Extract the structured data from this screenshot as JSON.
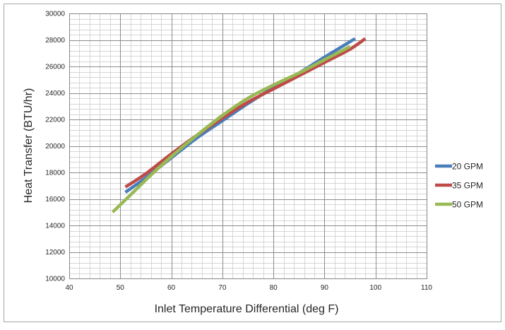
{
  "chart_data": {
    "type": "line",
    "title": "",
    "xlabel": "Inlet Temperature Differential (deg F)",
    "ylabel": "Heat Transfer (BTU/hr)",
    "xlim": [
      40,
      110
    ],
    "ylim": [
      10000,
      30000
    ],
    "x_ticks": [
      40,
      50,
      60,
      70,
      80,
      90,
      100,
      110
    ],
    "y_ticks": [
      10000,
      12000,
      14000,
      16000,
      18000,
      20000,
      22000,
      24000,
      26000,
      28000,
      30000
    ],
    "x_tick_labels": [
      "40",
      "50",
      "60",
      "70",
      "80",
      "90",
      "100",
      "110"
    ],
    "y_tick_labels": [
      "10000",
      "12000",
      "14000",
      "16000",
      "18000",
      "20000",
      "22000",
      "24000",
      "26000",
      "28000",
      "30000"
    ],
    "major_grid": true,
    "minor_grid": true,
    "legend_position": "right",
    "series": [
      {
        "name": "20 GPM",
        "color": "#4a7ebb",
        "points": [
          [
            51,
            16500
          ],
          [
            55,
            17600
          ],
          [
            60,
            19100
          ],
          [
            65,
            20600
          ],
          [
            70,
            21900
          ],
          [
            75,
            23200
          ],
          [
            80,
            24400
          ],
          [
            85,
            25500
          ],
          [
            90,
            26700
          ],
          [
            96,
            28100
          ]
        ]
      },
      {
        "name": "35 GPM",
        "color": "#be4b48",
        "points": [
          [
            51,
            16900
          ],
          [
            55,
            17900
          ],
          [
            60,
            19400
          ],
          [
            65,
            20800
          ],
          [
            70,
            22100
          ],
          [
            75,
            23300
          ],
          [
            80,
            24300
          ],
          [
            85,
            25300
          ],
          [
            90,
            26300
          ],
          [
            95,
            27300
          ],
          [
            98,
            28100
          ]
        ]
      },
      {
        "name": "50 GPM",
        "color": "#98b954",
        "points": [
          [
            48.5,
            15000
          ],
          [
            52,
            16300
          ],
          [
            56,
            17800
          ],
          [
            60,
            19200
          ],
          [
            65,
            20800
          ],
          [
            70,
            22300
          ],
          [
            75,
            23600
          ],
          [
            80,
            24600
          ],
          [
            85,
            25500
          ],
          [
            90,
            26500
          ],
          [
            95,
            27500
          ]
        ]
      }
    ]
  }
}
